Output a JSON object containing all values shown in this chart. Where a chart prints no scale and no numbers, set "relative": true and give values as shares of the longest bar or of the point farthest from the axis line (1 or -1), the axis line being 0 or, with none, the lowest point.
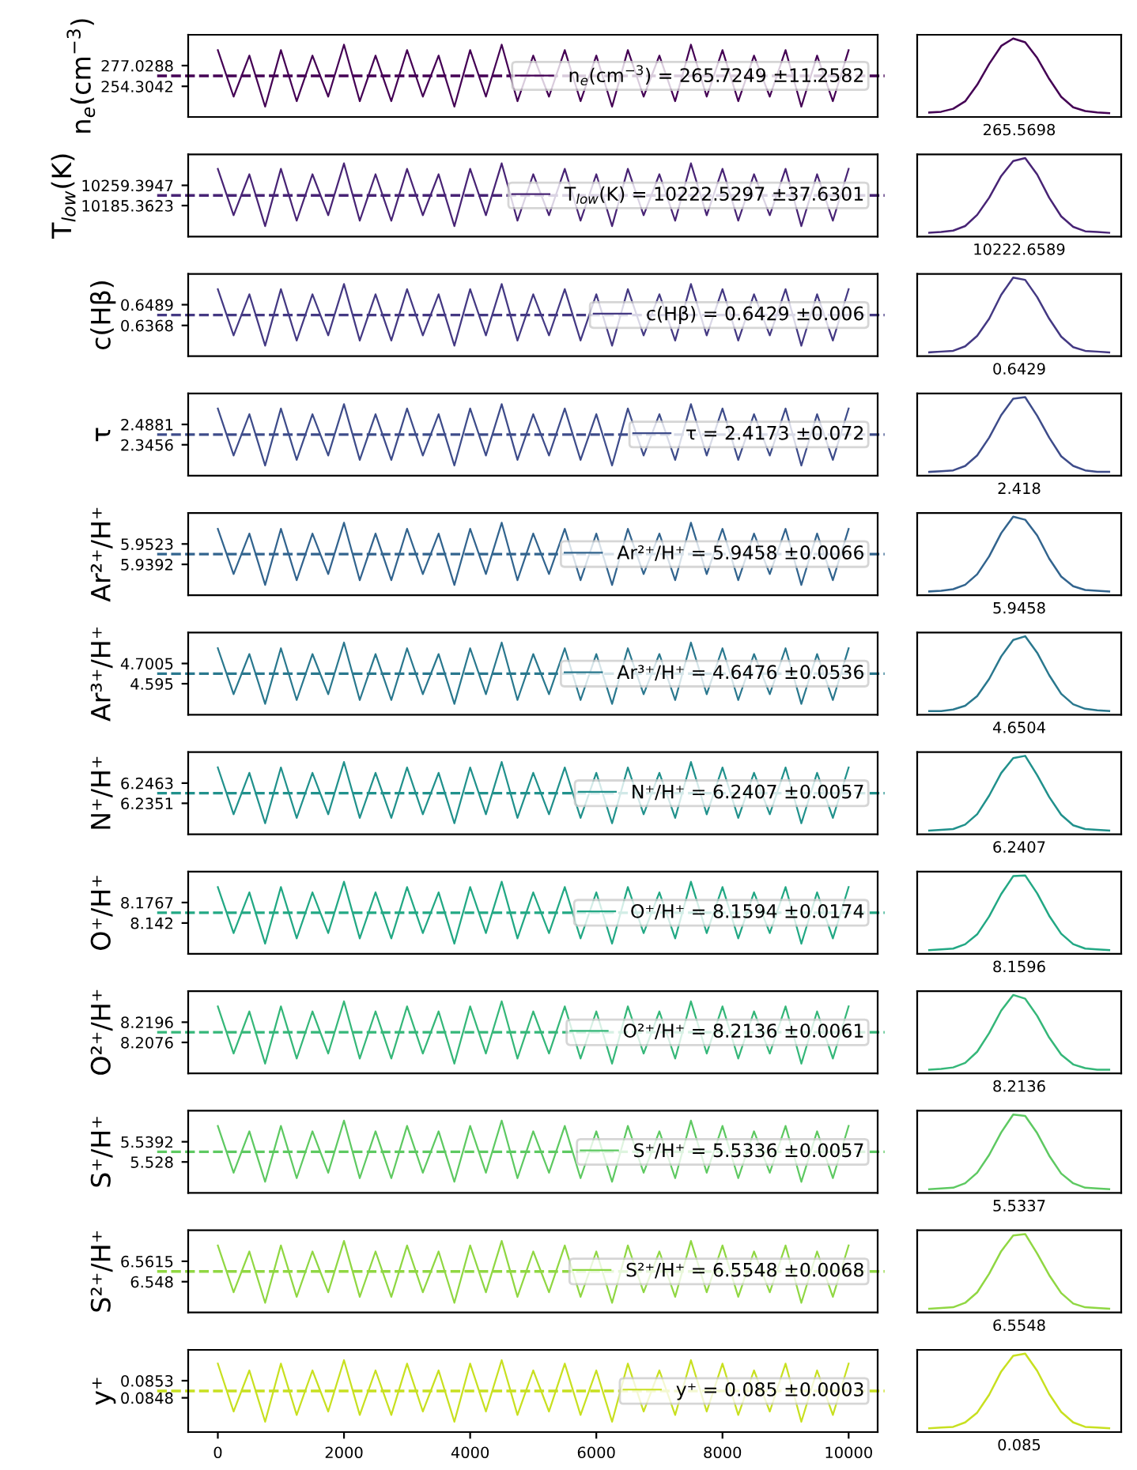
{
  "chart_data": [
    {
      "type": "line",
      "ylabel": "n$_{e}$(cm$^{−3}$)",
      "x": [
        0,
        250,
        500,
        750,
        1000,
        1250,
        1500,
        1750,
        2000,
        2250,
        2500,
        2750,
        3000,
        3250,
        3500,
        3750,
        4000,
        4250,
        4500,
        4750,
        5000,
        5250,
        5500,
        5750,
        6000,
        6250,
        6500,
        6750,
        7000,
        7250,
        7500,
        7750,
        8000,
        8250,
        8500,
        8750,
        9000,
        9250,
        9500,
        9750,
        10000
      ],
      "xlim": [
        -470,
        10460
      ],
      "ylim": [
        220.7,
        310.8
      ],
      "yticks": [
        254.3042,
        277.0288
      ],
      "tick_labels": "y",
      "legend": "right",
      "series": [
        {
          "name": "n$_{e}$(cm$^{−3}$) = 265.7249 ±11.2582",
          "color": "#440154",
          "values": [
            294,
            243,
            288,
            232,
            294,
            238,
            288,
            243,
            300,
            238,
            288,
            238,
            294,
            243,
            288,
            232,
            294,
            243,
            300,
            238,
            288,
            243,
            294,
            238,
            288,
            232,
            294,
            243,
            288,
            238,
            300,
            243,
            294,
            238,
            288,
            243,
            294,
            232,
            288,
            238,
            294
          ]
        }
      ],
      "ref_lines": [
        {
          "axis": "y",
          "value": 265.7249,
          "color": "#440154",
          "line_style": "dashed"
        }
      ]
    },
    {
      "type": "line",
      "relative": true,
      "color": "#440154",
      "categories": [
        null,
        null,
        null,
        null,
        null,
        null,
        null,
        null,
        null,
        null,
        null,
        null,
        null,
        null,
        null,
        null
      ],
      "values": [
        0.01,
        0.02,
        0.06,
        0.16,
        0.38,
        0.66,
        0.9,
        1,
        0.95,
        0.74,
        0.46,
        0.22,
        0.08,
        0.03,
        0.01,
        0
      ],
      "annotations": [
        "265.5698"
      ]
    },
    {
      "type": "line",
      "ylabel": "T$_{low}$(K)",
      "x": [
        0,
        250,
        500,
        750,
        1000,
        1250,
        1500,
        1750,
        2000,
        2250,
        2500,
        2750,
        3000,
        3250,
        3500,
        3750,
        4000,
        4250,
        4500,
        4750,
        5000,
        5250,
        5500,
        5750,
        6000,
        6250,
        6500,
        6750,
        7000,
        7250,
        7500,
        7750,
        8000,
        8250,
        8500,
        8750,
        9000,
        9250,
        9500,
        9750,
        10000
      ],
      "xlim": [
        -470,
        10460
      ],
      "ylim": [
        10072,
        10373
      ],
      "yticks": [
        10185.3623,
        10259.3947
      ],
      "tick_labels": "y",
      "legend": "right",
      "series": [
        {
          "name": "T$_{low}$(K) = 10222.5297 ±37.6301",
          "color": "#482475",
          "values": [
            10320,
            10150,
            10300,
            10110,
            10320,
            10130,
            10300,
            10150,
            10340,
            10130,
            10300,
            10130,
            10320,
            10150,
            10300,
            10110,
            10320,
            10150,
            10340,
            10130,
            10300,
            10150,
            10320,
            10130,
            10300,
            10110,
            10320,
            10150,
            10300,
            10130,
            10340,
            10150,
            10320,
            10130,
            10300,
            10150,
            10320,
            10110,
            10300,
            10130,
            10320
          ]
        }
      ],
      "ref_lines": [
        {
          "axis": "y",
          "value": 10222.5297,
          "color": "#482475",
          "line_style": "dashed"
        }
      ]
    },
    {
      "type": "line",
      "relative": true,
      "color": "#482475",
      "categories": [
        null,
        null,
        null,
        null,
        null,
        null,
        null,
        null,
        null,
        null,
        null,
        null,
        null,
        null,
        null,
        null
      ],
      "values": [
        0,
        0.01,
        0.03,
        0.09,
        0.24,
        0.47,
        0.76,
        0.96,
        1,
        0.78,
        0.47,
        0.22,
        0.08,
        0.02,
        0.01,
        0
      ],
      "annotations": [
        "10222.6589"
      ]
    },
    {
      "type": "line",
      "ylabel": "c(Hβ)",
      "x": [
        0,
        250,
        500,
        750,
        1000,
        1250,
        1500,
        1750,
        2000,
        2250,
        2500,
        2750,
        3000,
        3250,
        3500,
        3750,
        4000,
        4250,
        4500,
        4750,
        5000,
        5250,
        5500,
        5750,
        6000,
        6250,
        6500,
        6750,
        7000,
        7250,
        7500,
        7750,
        8000,
        8250,
        8500,
        8750,
        9000,
        9250,
        9500,
        9750,
        10000
      ],
      "xlim": [
        -470,
        10460
      ],
      "ylim": [
        0.6189,
        0.6669
      ],
      "yticks": [
        0.6368,
        0.6489
      ],
      "tick_labels": "y",
      "legend": "right",
      "series": [
        {
          "name": "c(Hβ) = 0.6429 ±0.006",
          "color": "#443983",
          "values": [
            0.658,
            0.631,
            0.655,
            0.625,
            0.658,
            0.628,
            0.655,
            0.631,
            0.661,
            0.628,
            0.655,
            0.628,
            0.658,
            0.631,
            0.655,
            0.625,
            0.658,
            0.631,
            0.661,
            0.628,
            0.655,
            0.631,
            0.658,
            0.628,
            0.655,
            0.625,
            0.658,
            0.631,
            0.655,
            0.628,
            0.661,
            0.631,
            0.658,
            0.628,
            0.655,
            0.631,
            0.658,
            0.625,
            0.655,
            0.628,
            0.658
          ]
        }
      ],
      "ref_lines": [
        {
          "axis": "y",
          "value": 0.6429,
          "color": "#443983",
          "line_style": "dashed"
        }
      ]
    },
    {
      "type": "line",
      "relative": true,
      "color": "#443983",
      "categories": [
        null,
        null,
        null,
        null,
        null,
        null,
        null,
        null,
        null,
        null,
        null,
        null,
        null,
        null,
        null,
        null
      ],
      "values": [
        0,
        0.01,
        0.02,
        0.08,
        0.22,
        0.45,
        0.77,
        1,
        0.97,
        0.74,
        0.45,
        0.21,
        0.07,
        0.02,
        0.01,
        0
      ],
      "annotations": [
        "0.6429"
      ]
    },
    {
      "type": "line",
      "ylabel": "τ",
      "x": [
        0,
        250,
        500,
        750,
        1000,
        1250,
        1500,
        1750,
        2000,
        2250,
        2500,
        2750,
        3000,
        3250,
        3500,
        3750,
        4000,
        4250,
        4500,
        4750,
        5000,
        5250,
        5500,
        5750,
        6000,
        6250,
        6500,
        6750,
        7000,
        7250,
        7500,
        7750,
        8000,
        8250,
        8500,
        8750,
        9000,
        9250,
        9500,
        9750,
        10000
      ],
      "xlim": [
        -470,
        10460
      ],
      "ylim": [
        2.1293,
        2.7053
      ],
      "yticks": [
        2.3456,
        2.4881
      ],
      "tick_labels": "y",
      "legend": "right",
      "series": [
        {
          "name": "τ = 2.4173 ±0.072",
          "color": "#3e4c8a",
          "values": [
            2.6,
            2.27,
            2.56,
            2.2,
            2.6,
            2.24,
            2.56,
            2.27,
            2.63,
            2.24,
            2.56,
            2.24,
            2.6,
            2.27,
            2.56,
            2.2,
            2.6,
            2.27,
            2.63,
            2.24,
            2.56,
            2.27,
            2.6,
            2.24,
            2.56,
            2.2,
            2.6,
            2.27,
            2.56,
            2.24,
            2.63,
            2.27,
            2.6,
            2.24,
            2.56,
            2.27,
            2.6,
            2.2,
            2.56,
            2.24,
            2.6
          ]
        }
      ],
      "ref_lines": [
        {
          "axis": "y",
          "value": 2.4173,
          "color": "#3e4c8a",
          "line_style": "dashed"
        }
      ]
    },
    {
      "type": "line",
      "relative": true,
      "color": "#3e4c8a",
      "categories": [
        null,
        null,
        null,
        null,
        null,
        null,
        null,
        null,
        null,
        null,
        null,
        null,
        null,
        null,
        null,
        null
      ],
      "values": [
        0,
        0.01,
        0.02,
        0.08,
        0.22,
        0.46,
        0.76,
        0.98,
        1,
        0.75,
        0.46,
        0.21,
        0.08,
        0.02,
        0,
        0
      ],
      "annotations": [
        "2.418"
      ]
    },
    {
      "type": "line",
      "ylabel": "Ar²⁺/H⁺",
      "x": [
        0,
        250,
        500,
        750,
        1000,
        1250,
        1500,
        1750,
        2000,
        2250,
        2500,
        2750,
        3000,
        3250,
        3500,
        3750,
        4000,
        4250,
        4500,
        4750,
        5000,
        5250,
        5500,
        5750,
        6000,
        6250,
        6500,
        6750,
        7000,
        7250,
        7500,
        7750,
        8000,
        8250,
        8500,
        8750,
        9000,
        9250,
        9500,
        9750,
        10000
      ],
      "xlim": [
        -470,
        10460
      ],
      "ylim": [
        5.9194,
        5.9722
      ],
      "yticks": [
        5.9392,
        5.9523
      ],
      "tick_labels": "y",
      "legend": "right",
      "series": [
        {
          "name": "Ar²⁺/H⁺ = 5.9458 ±0.0066",
          "color": "#32648e",
          "values": [
            5.962,
            5.933,
            5.959,
            5.926,
            5.962,
            5.929,
            5.959,
            5.933,
            5.966,
            5.929,
            5.959,
            5.929,
            5.962,
            5.933,
            5.959,
            5.926,
            5.962,
            5.933,
            5.966,
            5.929,
            5.959,
            5.933,
            5.962,
            5.929,
            5.959,
            5.926,
            5.962,
            5.933,
            5.959,
            5.929,
            5.966,
            5.933,
            5.962,
            5.929,
            5.959,
            5.933,
            5.962,
            5.926,
            5.959,
            5.929,
            5.962
          ]
        }
      ],
      "ref_lines": [
        {
          "axis": "y",
          "value": 5.9458,
          "color": "#32648e",
          "line_style": "dashed"
        }
      ]
    },
    {
      "type": "line",
      "relative": true,
      "color": "#32648e",
      "categories": [
        null,
        null,
        null,
        null,
        null,
        null,
        null,
        null,
        null,
        null,
        null,
        null,
        null,
        null,
        null,
        null
      ],
      "values": [
        0,
        0.01,
        0.03,
        0.09,
        0.23,
        0.47,
        0.78,
        1,
        0.96,
        0.75,
        0.44,
        0.2,
        0.07,
        0.02,
        0.01,
        0
      ],
      "annotations": [
        "5.9458"
      ]
    },
    {
      "type": "line",
      "ylabel": "Ar³⁺/H⁺",
      "x": [
        0,
        250,
        500,
        750,
        1000,
        1250,
        1500,
        1750,
        2000,
        2250,
        2500,
        2750,
        3000,
        3250,
        3500,
        3750,
        4000,
        4250,
        4500,
        4750,
        5000,
        5250,
        5500,
        5750,
        6000,
        6250,
        6500,
        6750,
        7000,
        7250,
        7500,
        7750,
        8000,
        8250,
        8500,
        8750,
        9000,
        9250,
        9500,
        9750,
        10000
      ],
      "xlim": [
        -470,
        10460
      ],
      "ylim": [
        4.4332,
        4.862
      ],
      "yticks": [
        4.595,
        4.7005
      ],
      "tick_labels": "y",
      "legend": "right",
      "series": [
        {
          "name": "Ar³⁺/H⁺ = 4.6476 ±0.0536",
          "color": "#2a788e",
          "values": [
            4.78,
            4.54,
            4.75,
            4.49,
            4.78,
            4.51,
            4.75,
            4.54,
            4.81,
            4.51,
            4.75,
            4.51,
            4.78,
            4.54,
            4.75,
            4.49,
            4.78,
            4.54,
            4.81,
            4.51,
            4.75,
            4.54,
            4.78,
            4.51,
            4.75,
            4.49,
            4.78,
            4.54,
            4.75,
            4.51,
            4.81,
            4.54,
            4.78,
            4.51,
            4.75,
            4.54,
            4.78,
            4.49,
            4.75,
            4.51,
            4.78
          ]
        }
      ],
      "ref_lines": [
        {
          "axis": "y",
          "value": 4.6476,
          "color": "#2a788e",
          "line_style": "dashed"
        }
      ]
    },
    {
      "type": "line",
      "relative": true,
      "color": "#2a788e",
      "categories": [
        null,
        null,
        null,
        null,
        null,
        null,
        null,
        null,
        null,
        null,
        null,
        null,
        null,
        null,
        null,
        null
      ],
      "values": [
        0,
        0,
        0.02,
        0.07,
        0.2,
        0.43,
        0.73,
        0.95,
        1,
        0.78,
        0.48,
        0.23,
        0.09,
        0.03,
        0.01,
        0
      ],
      "annotations": [
        "4.6504"
      ]
    },
    {
      "type": "line",
      "ylabel": "N⁺/H⁺",
      "x": [
        0,
        250,
        500,
        750,
        1000,
        1250,
        1500,
        1750,
        2000,
        2250,
        2500,
        2750,
        3000,
        3250,
        3500,
        3750,
        4000,
        4250,
        4500,
        4750,
        5000,
        5250,
        5500,
        5750,
        6000,
        6250,
        6500,
        6750,
        7000,
        7250,
        7500,
        7750,
        8000,
        8250,
        8500,
        8750,
        9000,
        9250,
        9500,
        9750,
        10000
      ],
      "xlim": [
        -470,
        10460
      ],
      "ylim": [
        6.2179,
        6.2635
      ],
      "yticks": [
        6.2351,
        6.2463
      ],
      "tick_labels": "y",
      "legend": "right",
      "series": [
        {
          "name": "N⁺/H⁺ = 6.2407 ±0.0057",
          "color": "#21918c",
          "values": [
            6.255,
            6.229,
            6.252,
            6.224,
            6.255,
            6.227,
            6.252,
            6.229,
            6.258,
            6.227,
            6.252,
            6.227,
            6.255,
            6.229,
            6.252,
            6.224,
            6.255,
            6.229,
            6.258,
            6.227,
            6.252,
            6.229,
            6.255,
            6.227,
            6.252,
            6.224,
            6.255,
            6.229,
            6.252,
            6.227,
            6.258,
            6.229,
            6.255,
            6.227,
            6.252,
            6.229,
            6.255,
            6.224,
            6.252,
            6.227,
            6.255
          ]
        }
      ],
      "ref_lines": [
        {
          "axis": "y",
          "value": 6.2407,
          "color": "#21918c",
          "line_style": "dashed"
        }
      ]
    },
    {
      "type": "line",
      "relative": true,
      "color": "#21918c",
      "categories": [
        null,
        null,
        null,
        null,
        null,
        null,
        null,
        null,
        null,
        null,
        null,
        null,
        null,
        null,
        null,
        null
      ],
      "values": [
        0,
        0.01,
        0.02,
        0.08,
        0.22,
        0.47,
        0.77,
        0.97,
        1,
        0.74,
        0.45,
        0.21,
        0.07,
        0.02,
        0.01,
        0
      ],
      "annotations": [
        "6.2407"
      ]
    },
    {
      "type": "line",
      "ylabel": "O⁺/H⁺",
      "x": [
        0,
        250,
        500,
        750,
        1000,
        1250,
        1500,
        1750,
        2000,
        2250,
        2500,
        2750,
        3000,
        3250,
        3500,
        3750,
        4000,
        4250,
        4500,
        4750,
        5000,
        5250,
        5500,
        5750,
        6000,
        6250,
        6500,
        6750,
        7000,
        7250,
        7500,
        7750,
        8000,
        8250,
        8500,
        8750,
        9000,
        9250,
        9500,
        9750,
        10000
      ],
      "xlim": [
        -470,
        10460
      ],
      "ylim": [
        8.0898,
        8.229
      ],
      "yticks": [
        8.142,
        8.1767
      ],
      "tick_labels": "y",
      "legend": "right",
      "series": [
        {
          "name": "O⁺/H⁺ = 8.1594 ±0.0174",
          "color": "#22a884",
          "values": [
            8.203,
            8.125,
            8.194,
            8.107,
            8.203,
            8.116,
            8.194,
            8.125,
            8.212,
            8.116,
            8.194,
            8.116,
            8.203,
            8.125,
            8.194,
            8.107,
            8.203,
            8.125,
            8.212,
            8.116,
            8.194,
            8.125,
            8.203,
            8.116,
            8.194,
            8.107,
            8.203,
            8.125,
            8.194,
            8.116,
            8.212,
            8.125,
            8.203,
            8.116,
            8.194,
            8.125,
            8.203,
            8.107,
            8.194,
            8.116,
            8.203
          ]
        }
      ],
      "ref_lines": [
        {
          "axis": "y",
          "value": 8.1594,
          "color": "#22a884",
          "line_style": "dashed"
        }
      ]
    },
    {
      "type": "line",
      "relative": true,
      "color": "#22a884",
      "categories": [
        null,
        null,
        null,
        null,
        null,
        null,
        null,
        null,
        null,
        null,
        null,
        null,
        null,
        null,
        null,
        null
      ],
      "values": [
        0,
        0.01,
        0.02,
        0.08,
        0.21,
        0.45,
        0.75,
        0.99,
        1,
        0.76,
        0.46,
        0.22,
        0.08,
        0.02,
        0.01,
        0
      ],
      "annotations": [
        "8.1596"
      ]
    },
    {
      "type": "line",
      "ylabel": "O²⁺/H⁺",
      "x": [
        0,
        250,
        500,
        750,
        1000,
        1250,
        1500,
        1750,
        2000,
        2250,
        2500,
        2750,
        3000,
        3250,
        3500,
        3750,
        4000,
        4250,
        4500,
        4750,
        5000,
        5250,
        5500,
        5750,
        6000,
        6250,
        6500,
        6750,
        7000,
        7250,
        7500,
        7750,
        8000,
        8250,
        8500,
        8750,
        9000,
        9250,
        9500,
        9750,
        10000
      ],
      "xlim": [
        -470,
        10460
      ],
      "ylim": [
        8.1892,
        8.238
      ],
      "yticks": [
        8.2076,
        8.2196
      ],
      "tick_labels": "y",
      "legend": "right",
      "series": [
        {
          "name": "O²⁺/H⁺ = 8.2136 ±0.0061",
          "color": "#35b779",
          "values": [
            8.229,
            8.201,
            8.226,
            8.195,
            8.229,
            8.198,
            8.226,
            8.201,
            8.232,
            8.198,
            8.226,
            8.198,
            8.229,
            8.201,
            8.226,
            8.195,
            8.229,
            8.201,
            8.232,
            8.198,
            8.226,
            8.201,
            8.229,
            8.198,
            8.226,
            8.195,
            8.229,
            8.201,
            8.226,
            8.198,
            8.232,
            8.201,
            8.229,
            8.198,
            8.226,
            8.201,
            8.229,
            8.195,
            8.226,
            8.198,
            8.229
          ]
        }
      ],
      "ref_lines": [
        {
          "axis": "y",
          "value": 8.2136,
          "color": "#35b779",
          "line_style": "dashed"
        }
      ]
    },
    {
      "type": "line",
      "relative": true,
      "color": "#35b779",
      "categories": [
        null,
        null,
        null,
        null,
        null,
        null,
        null,
        null,
        null,
        null,
        null,
        null,
        null,
        null,
        null,
        null
      ],
      "values": [
        0,
        0.01,
        0.03,
        0.09,
        0.24,
        0.49,
        0.79,
        1,
        0.95,
        0.72,
        0.43,
        0.2,
        0.07,
        0.02,
        0,
        0
      ],
      "annotations": [
        "8.2136"
      ]
    },
    {
      "type": "line",
      "ylabel": "S⁺/H⁺",
      "x": [
        0,
        250,
        500,
        750,
        1000,
        1250,
        1500,
        1750,
        2000,
        2250,
        2500,
        2750,
        3000,
        3250,
        3500,
        3750,
        4000,
        4250,
        4500,
        4750,
        5000,
        5250,
        5500,
        5750,
        6000,
        6250,
        6500,
        6750,
        7000,
        7250,
        7500,
        7750,
        8000,
        8250,
        8500,
        8750,
        9000,
        9250,
        9500,
        9750,
        10000
      ],
      "xlim": [
        -470,
        10460
      ],
      "ylim": [
        5.5108,
        5.5564
      ],
      "yticks": [
        5.528,
        5.5392
      ],
      "tick_labels": "y",
      "legend": "right",
      "series": [
        {
          "name": "S⁺/H⁺ = 5.5336 ±0.0057",
          "color": "#5ec962",
          "values": [
            5.548,
            5.522,
            5.545,
            5.517,
            5.548,
            5.519,
            5.545,
            5.522,
            5.551,
            5.519,
            5.545,
            5.519,
            5.548,
            5.522,
            5.545,
            5.517,
            5.548,
            5.522,
            5.551,
            5.519,
            5.545,
            5.522,
            5.548,
            5.519,
            5.545,
            5.517,
            5.548,
            5.522,
            5.545,
            5.519,
            5.551,
            5.522,
            5.548,
            5.519,
            5.545,
            5.522,
            5.548,
            5.517,
            5.545,
            5.519,
            5.548
          ]
        }
      ],
      "ref_lines": [
        {
          "axis": "y",
          "value": 5.5336,
          "color": "#5ec962",
          "line_style": "dashed"
        }
      ]
    },
    {
      "type": "line",
      "relative": true,
      "color": "#5ec962",
      "categories": [
        null,
        null,
        null,
        null,
        null,
        null,
        null,
        null,
        null,
        null,
        null,
        null,
        null,
        null,
        null,
        null
      ],
      "values": [
        0,
        0.01,
        0.02,
        0.08,
        0.22,
        0.46,
        0.76,
        1,
        0.98,
        0.75,
        0.45,
        0.21,
        0.08,
        0.02,
        0.01,
        0
      ],
      "annotations": [
        "5.5337"
      ]
    },
    {
      "type": "line",
      "ylabel": "S²⁺/H⁺",
      "x": [
        0,
        250,
        500,
        750,
        1000,
        1250,
        1500,
        1750,
        2000,
        2250,
        2500,
        2750,
        3000,
        3250,
        3500,
        3750,
        4000,
        4250,
        4500,
        4750,
        5000,
        5250,
        5500,
        5750,
        6000,
        6250,
        6500,
        6750,
        7000,
        7250,
        7500,
        7750,
        8000,
        8250,
        8500,
        8750,
        9000,
        9250,
        9500,
        9750,
        10000
      ],
      "xlim": [
        -470,
        10460
      ],
      "ylim": [
        6.5276,
        6.582
      ],
      "yticks": [
        6.548,
        6.5615
      ],
      "tick_labels": "y",
      "legend": "right",
      "series": [
        {
          "name": "S²⁺/H⁺ = 6.5548 ±0.0068",
          "color": "#90d743",
          "values": [
            6.572,
            6.541,
            6.568,
            6.534,
            6.572,
            6.538,
            6.568,
            6.541,
            6.575,
            6.538,
            6.568,
            6.538,
            6.572,
            6.541,
            6.568,
            6.534,
            6.572,
            6.541,
            6.575,
            6.538,
            6.568,
            6.541,
            6.572,
            6.538,
            6.568,
            6.534,
            6.572,
            6.541,
            6.568,
            6.538,
            6.575,
            6.541,
            6.572,
            6.538,
            6.568,
            6.541,
            6.572,
            6.534,
            6.568,
            6.538,
            6.572
          ]
        }
      ],
      "ref_lines": [
        {
          "axis": "y",
          "value": 6.5548,
          "color": "#90d743",
          "line_style": "dashed"
        }
      ]
    },
    {
      "type": "line",
      "relative": true,
      "color": "#90d743",
      "categories": [
        null,
        null,
        null,
        null,
        null,
        null,
        null,
        null,
        null,
        null,
        null,
        null,
        null,
        null,
        null,
        null
      ],
      "values": [
        0,
        0.01,
        0.02,
        0.08,
        0.22,
        0.47,
        0.77,
        0.98,
        1,
        0.74,
        0.45,
        0.21,
        0.07,
        0.02,
        0.01,
        0
      ],
      "annotations": [
        "6.5548"
      ]
    },
    {
      "type": "line",
      "ylabel": "y⁺",
      "x": [
        0,
        250,
        500,
        750,
        1000,
        1250,
        1500,
        1750,
        2000,
        2250,
        2500,
        2750,
        3000,
        3250,
        3500,
        3750,
        4000,
        4250,
        4500,
        4750,
        5000,
        5250,
        5500,
        5750,
        6000,
        6250,
        6500,
        6750,
        7000,
        7250,
        7500,
        7750,
        8000,
        8250,
        8500,
        8750,
        9000,
        9250,
        9500,
        9750,
        10000
      ],
      "xlim": [
        -470,
        10460
      ],
      "xticks": [
        0,
        2000,
        4000,
        6000,
        8000,
        10000
      ],
      "ylim": [
        0.0838,
        0.0862
      ],
      "yticks": [
        0.0848,
        0.0853
      ],
      "legend": "right",
      "series": [
        {
          "name": "y⁺ = 0.085 ±0.0003",
          "color": "#c8e020",
          "values": [
            0.0858,
            0.0844,
            0.0856,
            0.0841,
            0.0858,
            0.0843,
            0.0856,
            0.0844,
            0.0859,
            0.0843,
            0.0856,
            0.0843,
            0.0858,
            0.0844,
            0.0856,
            0.0841,
            0.0858,
            0.0844,
            0.0859,
            0.0843,
            0.0856,
            0.0844,
            0.0858,
            0.0843,
            0.0856,
            0.0841,
            0.0858,
            0.0844,
            0.0856,
            0.0843,
            0.0859,
            0.0844,
            0.0858,
            0.0843,
            0.0856,
            0.0844,
            0.0858,
            0.0841,
            0.0856,
            0.0843,
            0.0858
          ]
        }
      ],
      "ref_lines": [
        {
          "axis": "y",
          "value": 0.085,
          "color": "#c8e020",
          "line_style": "dashed"
        }
      ]
    },
    {
      "type": "line",
      "relative": true,
      "color": "#c8e020",
      "categories": [
        null,
        null,
        null,
        null,
        null,
        null,
        null,
        null,
        null,
        null,
        null,
        null,
        null,
        null,
        null,
        null
      ],
      "values": [
        0,
        0.01,
        0.02,
        0.08,
        0.21,
        0.45,
        0.76,
        0.97,
        1,
        0.77,
        0.46,
        0.22,
        0.08,
        0.02,
        0.01,
        0
      ],
      "annotations": [
        "0.085"
      ]
    }
  ]
}
